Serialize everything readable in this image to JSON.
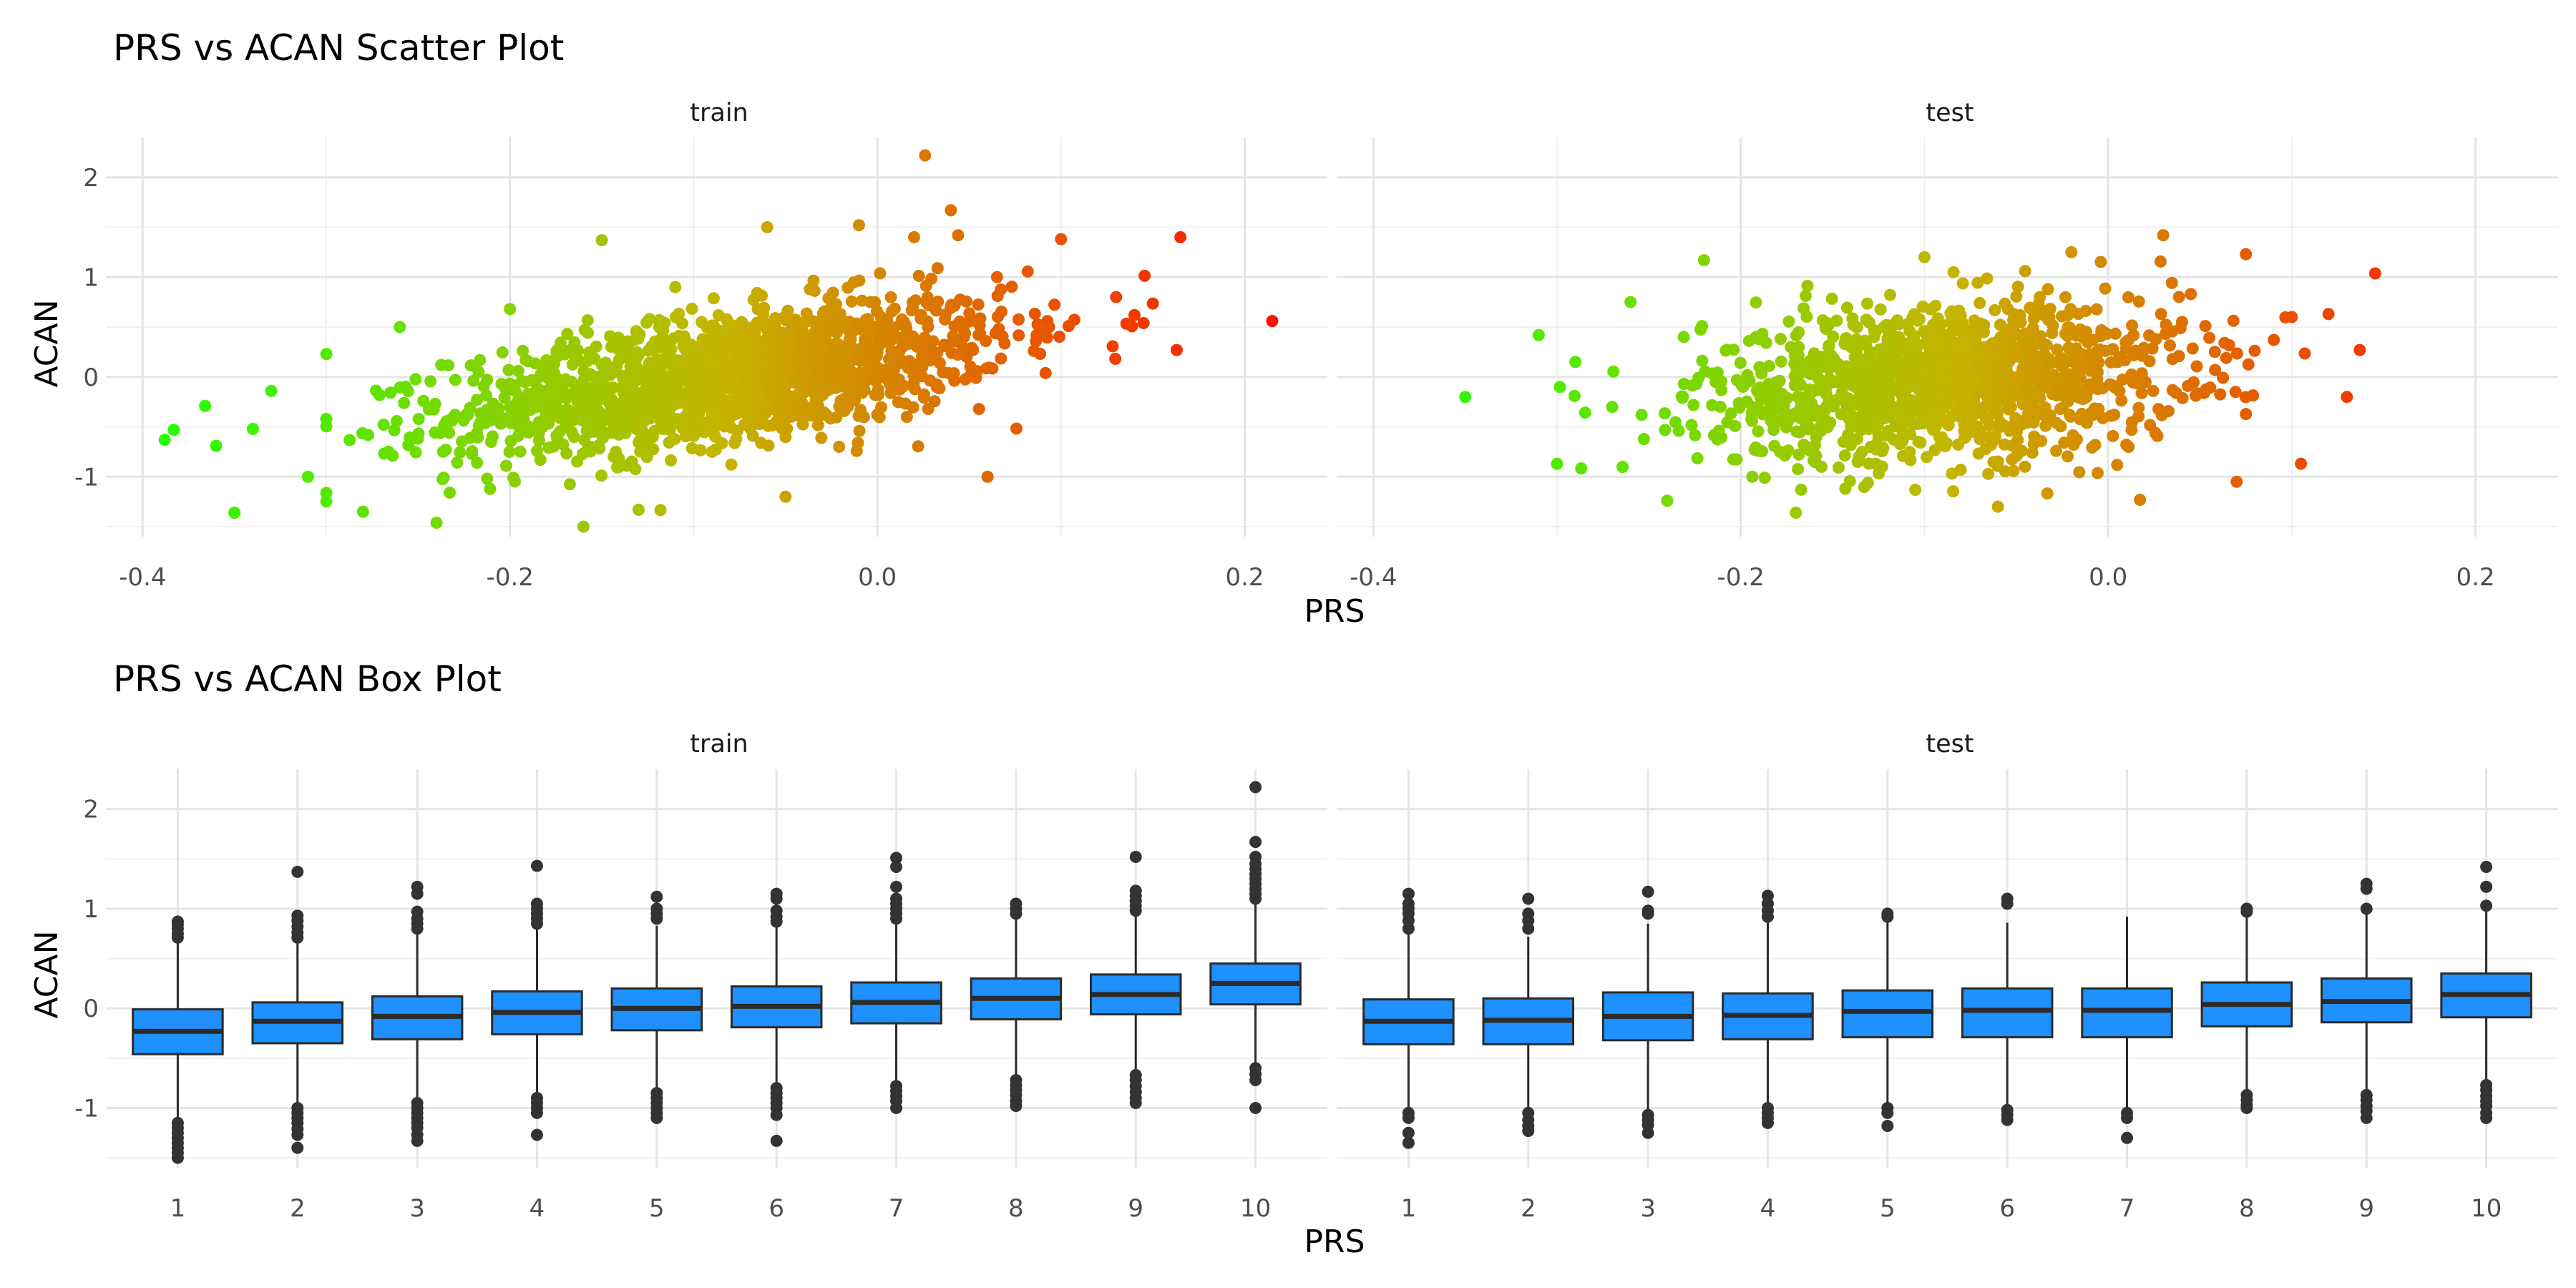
{
  "chart_data": [
    {
      "type": "scatter",
      "title": "PRS vs ACAN Scatter Plot",
      "xlabel": "PRS",
      "ylabel": "ACAN",
      "xlim": [
        -0.42,
        0.245
      ],
      "ylim": [
        -1.6,
        2.4
      ],
      "x_ticks": [
        -0.4,
        -0.2,
        0.0,
        0.2
      ],
      "x_tick_labels": [
        "-0.4",
        "-0.2",
        "0.0",
        "0.2"
      ],
      "y_ticks": [
        -1,
        0,
        1,
        2
      ],
      "y_tick_labels": [
        "-1",
        "0",
        "1",
        "2"
      ],
      "grid": true,
      "color_scale": {
        "low": "#22ff00",
        "mid": "#c4b600",
        "high": "#ff1100",
        "domain": [
          -0.39,
          0.215
        ]
      },
      "panels": [
        {
          "name": "train",
          "core": {
            "x_mean": -0.08,
            "x_sd": 0.075,
            "slope": 2.6,
            "resid_sd": 0.32,
            "n": 1600
          },
          "points": [
            {
              "x": -0.388,
              "y": -0.63
            },
            {
              "x": -0.383,
              "y": -0.53
            },
            {
              "x": -0.366,
              "y": -0.29
            },
            {
              "x": -0.36,
              "y": -0.69
            },
            {
              "x": -0.35,
              "y": -1.36
            },
            {
              "x": -0.34,
              "y": -0.52
            },
            {
              "x": -0.33,
              "y": -0.14
            },
            {
              "x": -0.31,
              "y": -1.0
            },
            {
              "x": -0.3,
              "y": 0.23
            },
            {
              "x": -0.28,
              "y": -1.35
            },
            {
              "x": -0.26,
              "y": 0.5
            },
            {
              "x": -0.24,
              "y": -1.46
            },
            {
              "x": -0.2,
              "y": 0.68
            },
            {
              "x": -0.16,
              "y": -1.5
            },
            {
              "x": -0.15,
              "y": 1.37
            },
            {
              "x": -0.13,
              "y": -1.33
            },
            {
              "x": -0.11,
              "y": 0.9
            },
            {
              "x": -0.06,
              "y": 1.5
            },
            {
              "x": -0.05,
              "y": -1.2
            },
            {
              "x": -0.01,
              "y": 1.52
            },
            {
              "x": 0.02,
              "y": 1.4
            },
            {
              "x": 0.026,
              "y": 2.22
            },
            {
              "x": 0.04,
              "y": 1.67
            },
            {
              "x": 0.06,
              "y": -1.0
            },
            {
              "x": 0.1,
              "y": 1.38
            },
            {
              "x": 0.13,
              "y": 0.8
            },
            {
              "x": 0.14,
              "y": 0.62
            },
            {
              "x": 0.165,
              "y": 1.4
            },
            {
              "x": 0.163,
              "y": 0.27
            },
            {
              "x": 0.215,
              "y": 0.56
            }
          ]
        },
        {
          "name": "test",
          "core": {
            "x_mean": -0.09,
            "x_sd": 0.065,
            "slope": 1.1,
            "resid_sd": 0.38,
            "n": 1300
          },
          "points": [
            {
              "x": -0.35,
              "y": -0.2
            },
            {
              "x": -0.31,
              "y": 0.42
            },
            {
              "x": -0.3,
              "y": -0.87
            },
            {
              "x": -0.29,
              "y": 0.15
            },
            {
              "x": -0.27,
              "y": -0.3
            },
            {
              "x": -0.26,
              "y": 0.75
            },
            {
              "x": -0.24,
              "y": -1.24
            },
            {
              "x": -0.22,
              "y": 1.17
            },
            {
              "x": -0.17,
              "y": -1.36
            },
            {
              "x": -0.1,
              "y": 1.2
            },
            {
              "x": -0.06,
              "y": -1.3
            },
            {
              "x": -0.02,
              "y": 1.25
            },
            {
              "x": 0.03,
              "y": 1.42
            },
            {
              "x": 0.07,
              "y": -1.05
            },
            {
              "x": 0.075,
              "y": 1.23
            },
            {
              "x": 0.1,
              "y": 0.6
            },
            {
              "x": 0.105,
              "y": -0.87
            },
            {
              "x": 0.12,
              "y": 0.63
            },
            {
              "x": 0.13,
              "y": -0.2
            },
            {
              "x": 0.137,
              "y": 0.27
            }
          ]
        }
      ]
    },
    {
      "type": "box",
      "title": "PRS vs ACAN Box Plot",
      "xlabel": "PRS",
      "ylabel": "ACAN",
      "categories": [
        "1",
        "2",
        "3",
        "4",
        "5",
        "6",
        "7",
        "8",
        "9",
        "10"
      ],
      "ylim": [
        -1.6,
        2.4
      ],
      "y_ticks": [
        -1,
        0,
        1,
        2
      ],
      "y_tick_labels": [
        "-1",
        "0",
        "1",
        "2"
      ],
      "grid": true,
      "box_fill": "#1e90ff",
      "box_stroke": "#2b2b2b",
      "panels": [
        {
          "name": "train",
          "boxes": [
            {
              "q1": -0.46,
              "median": -0.23,
              "q3": -0.01,
              "lower": -1.1,
              "upper": 0.68,
              "outliers": [
                0.87,
                0.84,
                0.8,
                0.75,
                0.71,
                -1.15,
                -1.2,
                -1.25,
                -1.3,
                -1.35,
                -1.4,
                -1.45,
                -1.5
              ]
            },
            {
              "q1": -0.35,
              "median": -0.13,
              "q3": 0.06,
              "lower": -0.95,
              "upper": 0.66,
              "outliers": [
                1.37,
                0.93,
                0.88,
                0.82,
                0.76,
                0.71,
                -1.0,
                -1.05,
                -1.1,
                -1.15,
                -1.21,
                -1.27,
                -1.4
              ]
            },
            {
              "q1": -0.31,
              "median": -0.08,
              "q3": 0.12,
              "lower": -0.92,
              "upper": 0.75,
              "outliers": [
                1.22,
                1.15,
                0.97,
                0.9,
                0.85,
                0.8,
                -0.95,
                -1.0,
                -1.05,
                -1.1,
                -1.15,
                -1.2,
                -1.27,
                -1.33
              ]
            },
            {
              "q1": -0.26,
              "median": -0.04,
              "q3": 0.17,
              "lower": -0.87,
              "upper": 0.8,
              "outliers": [
                1.43,
                1.05,
                1.0,
                0.95,
                0.9,
                0.85,
                -0.9,
                -0.95,
                -1.0,
                -1.05,
                -1.27
              ]
            },
            {
              "q1": -0.22,
              "median": 0.0,
              "q3": 0.2,
              "lower": -0.82,
              "upper": 0.83,
              "outliers": [
                1.12,
                1.0,
                0.95,
                0.9,
                -0.85,
                -0.9,
                -0.95,
                -1.0,
                -1.05,
                -1.1
              ]
            },
            {
              "q1": -0.19,
              "median": 0.02,
              "q3": 0.22,
              "lower": -0.78,
              "upper": 0.83,
              "outliers": [
                1.15,
                1.1,
                0.98,
                0.92,
                0.87,
                -0.8,
                -0.85,
                -0.9,
                -0.95,
                -1.0,
                -1.07,
                -1.33
              ]
            },
            {
              "q1": -0.15,
              "median": 0.06,
              "q3": 0.26,
              "lower": -0.74,
              "upper": 0.87,
              "outliers": [
                1.51,
                1.42,
                1.22,
                1.1,
                1.05,
                1.0,
                0.95,
                0.9,
                -0.78,
                -0.83,
                -0.88,
                -0.93,
                -1.0
              ]
            },
            {
              "q1": -0.11,
              "median": 0.1,
              "q3": 0.3,
              "lower": -0.68,
              "upper": 0.9,
              "outliers": [
                1.05,
                1.0,
                0.95,
                -0.72,
                -0.77,
                -0.82,
                -0.87,
                -0.93,
                -0.98
              ]
            },
            {
              "q1": -0.06,
              "median": 0.14,
              "q3": 0.34,
              "lower": -0.63,
              "upper": 0.94,
              "outliers": [
                1.52,
                1.18,
                1.13,
                1.08,
                1.03,
                0.98,
                -0.67,
                -0.72,
                -0.78,
                -0.84,
                -0.9,
                -0.95
              ]
            },
            {
              "q1": 0.04,
              "median": 0.25,
              "q3": 0.45,
              "lower": -0.55,
              "upper": 1.05,
              "outliers": [
                2.22,
                1.67,
                1.52,
                1.45,
                1.4,
                1.35,
                1.3,
                1.25,
                1.2,
                1.15,
                1.1,
                -0.6,
                -0.66,
                -0.72,
                -1.0
              ]
            }
          ]
        },
        {
          "name": "test",
          "boxes": [
            {
              "q1": -0.36,
              "median": -0.13,
              "q3": 0.09,
              "lower": -1.0,
              "upper": 0.75,
              "outliers": [
                1.15,
                1.05,
                1.0,
                0.95,
                0.88,
                0.8,
                -1.05,
                -1.1,
                -1.25,
                -1.35
              ]
            },
            {
              "q1": -0.36,
              "median": -0.12,
              "q3": 0.1,
              "lower": -1.0,
              "upper": 0.72,
              "outliers": [
                1.1,
                0.95,
                0.88,
                0.8,
                -1.05,
                -1.12,
                -1.18,
                -1.23
              ]
            },
            {
              "q1": -0.32,
              "median": -0.08,
              "q3": 0.16,
              "lower": -1.02,
              "upper": 0.85,
              "outliers": [
                1.17,
                0.98,
                0.95,
                -1.07,
                -1.12,
                -1.17,
                -1.25
              ]
            },
            {
              "q1": -0.31,
              "median": -0.07,
              "q3": 0.15,
              "lower": -0.95,
              "upper": 0.86,
              "outliers": [
                1.13,
                1.05,
                0.98,
                0.92,
                -1.0,
                -1.05,
                -1.1,
                -1.15
              ]
            },
            {
              "q1": -0.29,
              "median": -0.03,
              "q3": 0.18,
              "lower": -0.95,
              "upper": 0.9,
              "outliers": [
                0.95,
                0.92,
                -1.0,
                -1.05,
                -1.18
              ]
            },
            {
              "q1": -0.29,
              "median": -0.02,
              "q3": 0.2,
              "lower": -0.98,
              "upper": 0.86,
              "outliers": [
                1.1,
                1.05,
                -1.02,
                -1.07,
                -1.12
              ]
            },
            {
              "q1": -0.29,
              "median": -0.02,
              "q3": 0.2,
              "lower": -1.0,
              "upper": 0.92,
              "outliers": [
                -1.05,
                -1.1,
                -1.3
              ]
            },
            {
              "q1": -0.18,
              "median": 0.04,
              "q3": 0.26,
              "lower": -0.82,
              "upper": 0.95,
              "outliers": [
                1.0,
                0.97,
                -0.87,
                -0.92,
                -0.97,
                -1.0
              ]
            },
            {
              "q1": -0.14,
              "median": 0.07,
              "q3": 0.3,
              "lower": -0.82,
              "upper": 0.95,
              "outliers": [
                1.25,
                1.2,
                1.0,
                -0.87,
                -0.92,
                -0.98,
                -1.03,
                -1.1
              ]
            },
            {
              "q1": -0.09,
              "median": 0.14,
              "q3": 0.35,
              "lower": -0.72,
              "upper": 0.97,
              "outliers": [
                1.42,
                1.22,
                1.03,
                -0.77,
                -0.82,
                -0.88,
                -0.93,
                -0.98,
                -1.05,
                -1.1
              ]
            }
          ]
        }
      ]
    }
  ]
}
